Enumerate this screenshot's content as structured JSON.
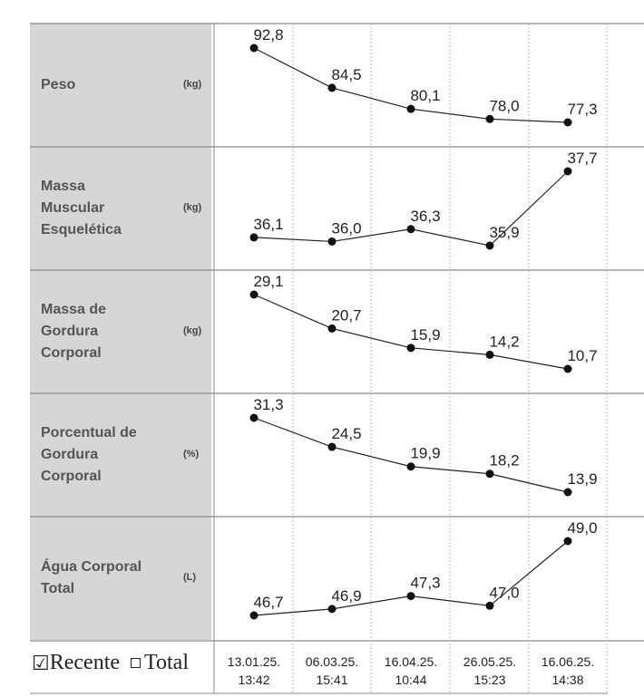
{
  "dates": [
    "13.01.25.\n13:42",
    "06.03.25.\n15:41",
    "16.04.25.\n10:44",
    "26.05.25.\n15:23",
    "16.06.25.\n14:38"
  ],
  "legend": {
    "recent": "Recente",
    "total": "Total",
    "recent_checked": true,
    "total_checked": false
  },
  "chart_data": [
    {
      "type": "line",
      "label": "Peso",
      "unit": "(kg)",
      "labels": [
        "92,8",
        "84,5",
        "80,1",
        "78,0",
        "77,3"
      ],
      "values": [
        92.8,
        84.5,
        80.1,
        78.0,
        77.3
      ]
    },
    {
      "type": "line",
      "label": "Massa\nMuscular\nEsquelética",
      "unit": "(kg)",
      "labels": [
        "36,1",
        "36,0",
        "36,3",
        "35,9",
        "37,7"
      ],
      "values": [
        36.1,
        36.0,
        36.3,
        35.9,
        37.7
      ]
    },
    {
      "type": "line",
      "label": "Massa de\nGordura\nCorporal",
      "unit": "(kg)",
      "labels": [
        "29,1",
        "20,7",
        "15,9",
        "14,2",
        "10,7"
      ],
      "values": [
        29.1,
        20.7,
        15.9,
        14.2,
        10.7
      ]
    },
    {
      "type": "line",
      "label": "Porcentual de\nGordura\nCorporal",
      "unit": "(%)",
      "labels": [
        "31,3",
        "24,5",
        "19,9",
        "18,2",
        "13,9"
      ],
      "values": [
        31.3,
        24.5,
        19.9,
        18.2,
        13.9
      ]
    },
    {
      "type": "line",
      "label": "Água Corporal\nTotal",
      "unit": "(L)",
      "labels": [
        "46,7",
        "46,9",
        "47,3",
        "47,0",
        "49,0"
      ],
      "values": [
        46.7,
        46.9,
        47.3,
        47.0,
        49.0
      ]
    }
  ]
}
